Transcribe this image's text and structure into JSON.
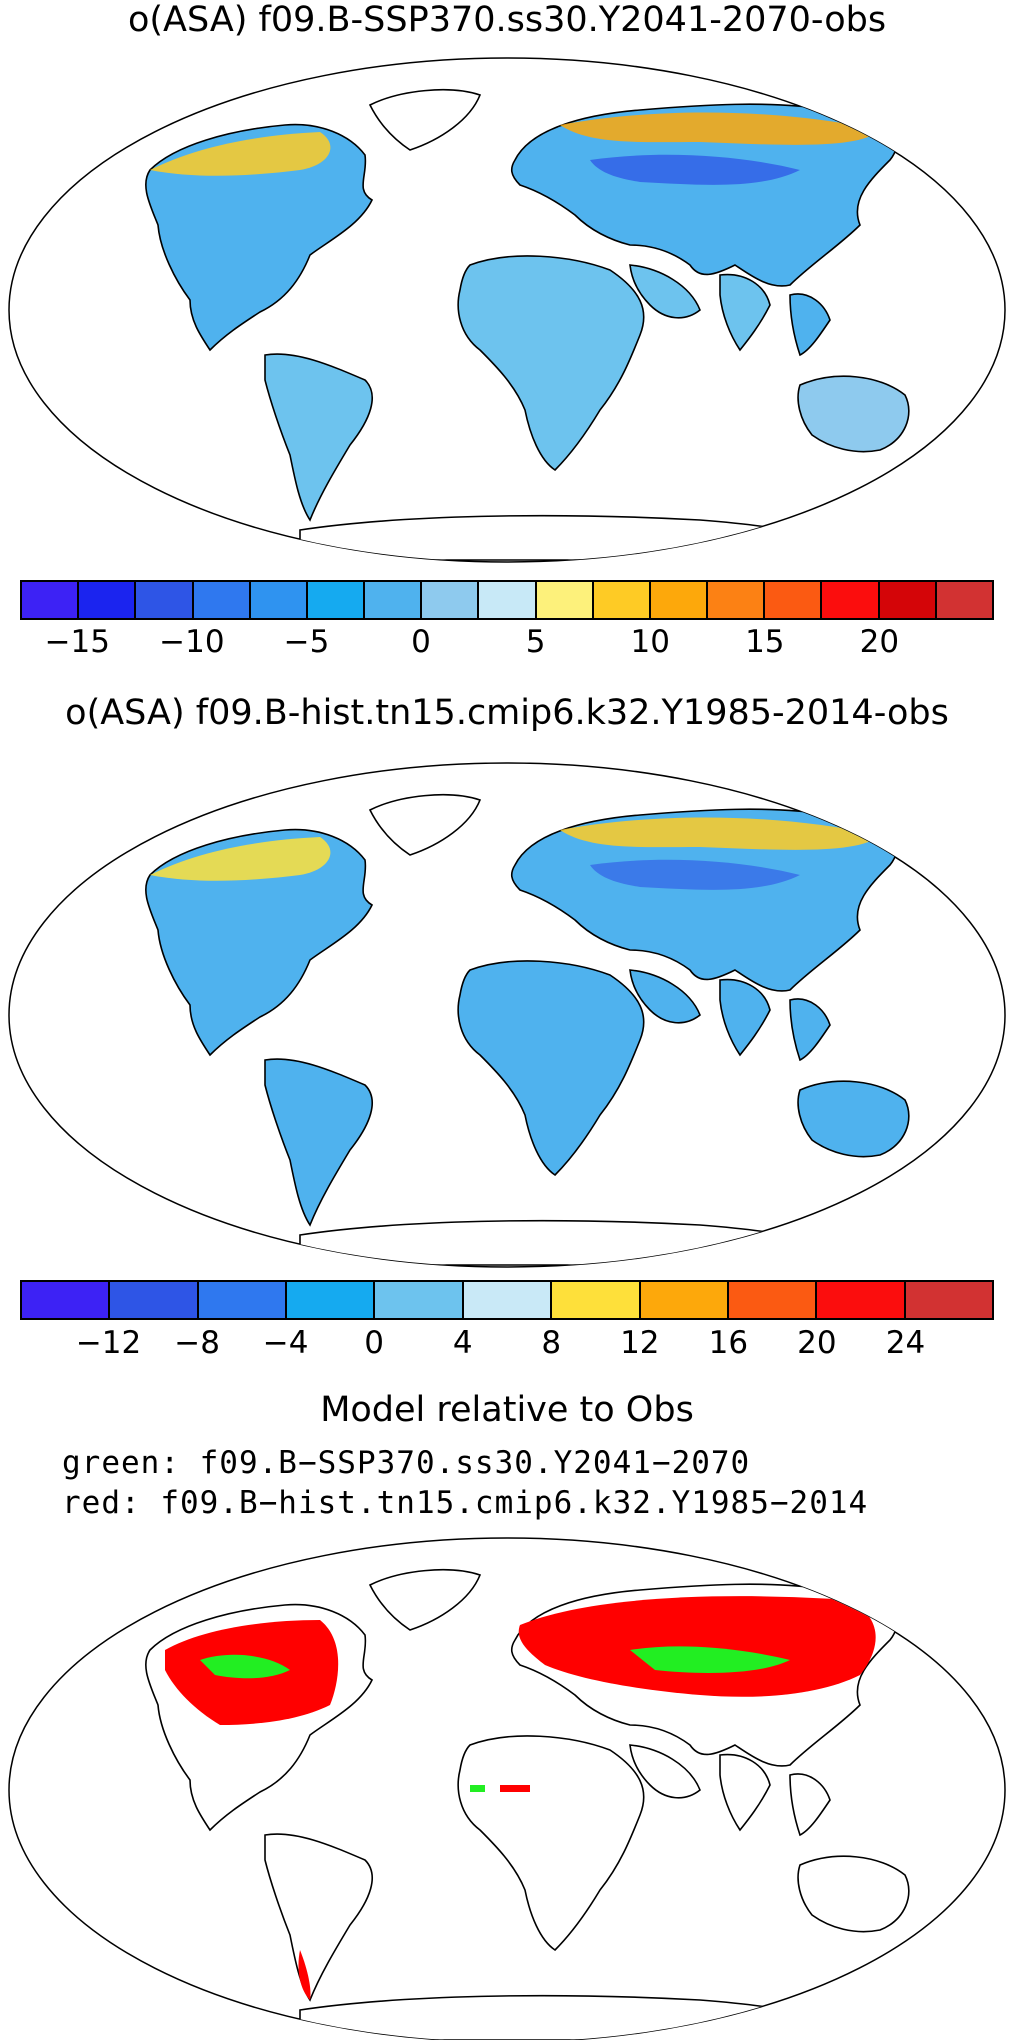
{
  "panel1": {
    "title": "o(ASA) f09.B-SSP370.ss30.Y2041-2070-obs",
    "colorbar": {
      "colors": [
        "#3d22f5",
        "#1b24ef",
        "#2e55e6",
        "#2f78ef",
        "#2f93f0",
        "#15aaf0",
        "#4fb2ee",
        "#8ecaee",
        "#c8e9f7",
        "#fdf17b",
        "#fecb25",
        "#fda80b",
        "#fc8114",
        "#fb5a12",
        "#fb0d0d",
        "#d40508",
        "#d23232"
      ],
      "tick_labels": [
        "−15",
        "−10",
        "−5",
        "0",
        "5",
        "10",
        "15",
        "20"
      ]
    }
  },
  "panel2": {
    "title": "o(ASA) f09.B-hist.tn15.cmip6.k32.Y1985-2014-obs",
    "colorbar": {
      "colors": [
        "#3d22f5",
        "#2e55e6",
        "#2f78ef",
        "#15aaf0",
        "#6dc3ee",
        "#c9e9f7",
        "#fee03a",
        "#fda80b",
        "#fb5a12",
        "#fb0d0d",
        "#d23232"
      ],
      "tick_labels": [
        "−12",
        "−8",
        "−4",
        "0",
        "4",
        "8",
        "12",
        "16",
        "20",
        "24"
      ]
    }
  },
  "panel3": {
    "title": "Model relative to Obs",
    "line_green": "green: f09.B−SSP370.ss30.Y2041−2070",
    "line_red": "red: f09.B−hist.tn15.cmip6.k32.Y1985−2014",
    "green": "#22ee22",
    "red": "#ff0000"
  }
}
